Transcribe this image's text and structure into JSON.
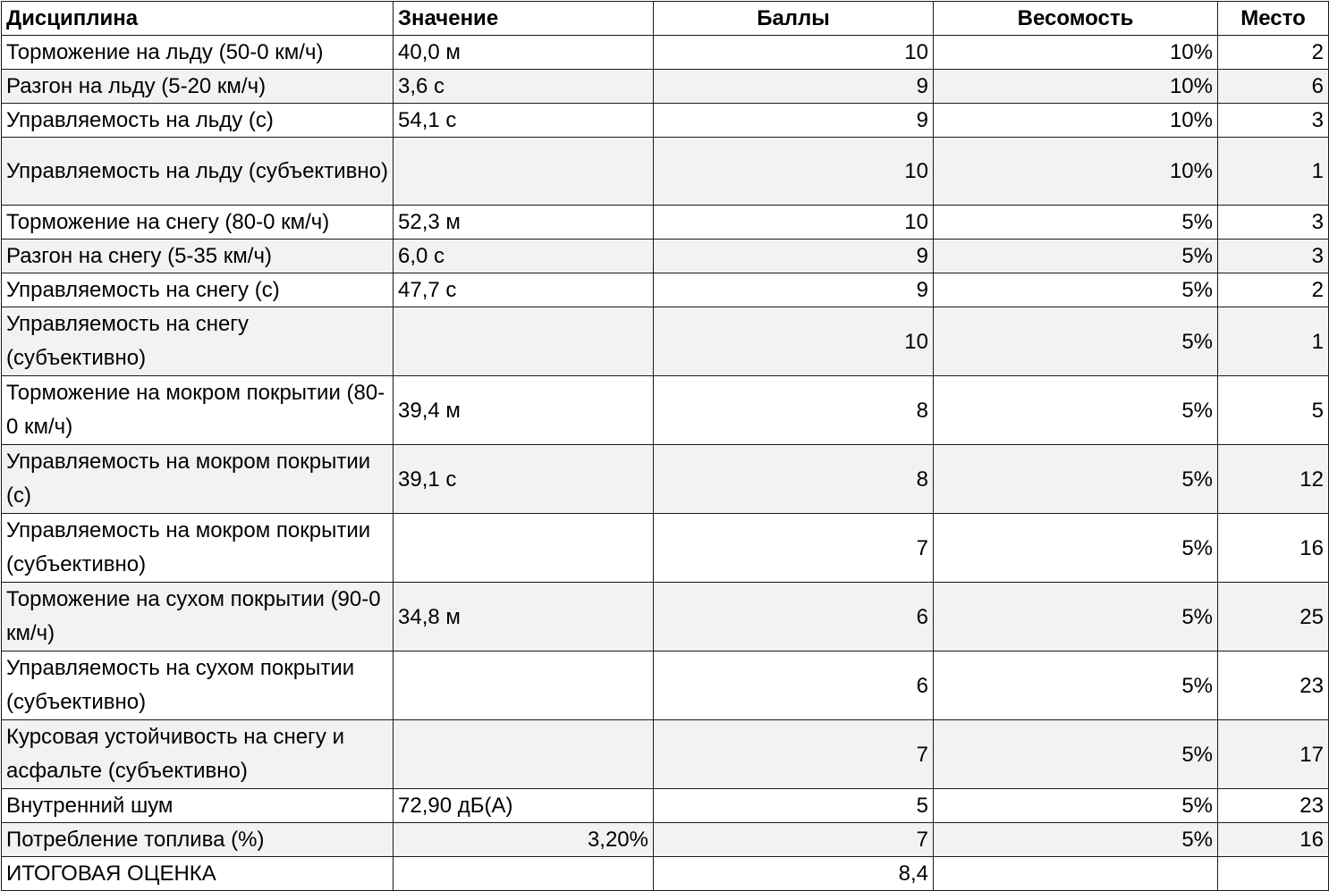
{
  "table": {
    "headers": {
      "discipline": "Дисциплина",
      "value": "Значение",
      "points": "Баллы",
      "weight": "Весомость",
      "place": "Место"
    },
    "rows": [
      {
        "discipline": "Торможение на льду (50-0 км/ч)",
        "value": "40,0 м",
        "points": "10",
        "weight": "10%",
        "place": "2"
      },
      {
        "discipline": "Разгон на льду (5-20 км/ч)",
        "value": "3,6 с",
        "points": "9",
        "weight": "10%",
        "place": "6"
      },
      {
        "discipline": "Управляемость на льду (с)",
        "value": "54,1 с",
        "points": "9",
        "weight": "10%",
        "place": "3"
      },
      {
        "discipline": "Управляемость на льду (субъективно)",
        "value": "",
        "points": "10",
        "weight": "10%",
        "place": "1"
      },
      {
        "discipline": "Торможение на снегу (80-0 км/ч)",
        "value": "52,3 м",
        "points": "10",
        "weight": "5%",
        "place": "3"
      },
      {
        "discipline": "Разгон на снегу (5-35 км/ч)",
        "value": "6,0 с",
        "points": "9",
        "weight": "5%",
        "place": "3"
      },
      {
        "discipline": "Управляемость на снегу (с)",
        "value": "47,7 с",
        "points": "9",
        "weight": "5%",
        "place": "2"
      },
      {
        "discipline": "Управляемость на снегу (субъективно)",
        "value": "",
        "points": "10",
        "weight": "5%",
        "place": "1"
      },
      {
        "discipline": "Торможение на мокром покрытии (80-0 км/ч)",
        "value": "39,4 м",
        "points": "8",
        "weight": "5%",
        "place": "5"
      },
      {
        "discipline": "Управляемость на мокром покрытии (с)",
        "value": "39,1 с",
        "points": "8",
        "weight": "5%",
        "place": "12"
      },
      {
        "discipline": "Управляемость на мокром покрытии (субъективно)",
        "value": "",
        "points": "7",
        "weight": "5%",
        "place": "16"
      },
      {
        "discipline": "Торможение на сухом покрытии (90-0 км/ч)",
        "value": "34,8 м",
        "points": "6",
        "weight": "5%",
        "place": "25"
      },
      {
        "discipline": "Управляемость на сухом покрытии (субъективно)",
        "value": "",
        "points": "6",
        "weight": "5%",
        "place": "23"
      },
      {
        "discipline": "Курсовая устойчивость на снегу и асфальте (субъективно)",
        "value": "",
        "points": "7",
        "weight": "5%",
        "place": "17"
      },
      {
        "discipline": "Внутренний шум",
        "value": "72,90 дБ(А)",
        "points": "5",
        "weight": "5%",
        "place": "23"
      },
      {
        "discipline": "Потребление топлива (%)",
        "value": "3,20%",
        "points": "7",
        "weight": "5%",
        "place": "16"
      }
    ],
    "total": {
      "label": "ИТОГОВАЯ ОЦЕНКА",
      "value": "",
      "points": "8,4",
      "weight": "",
      "place": ""
    }
  }
}
